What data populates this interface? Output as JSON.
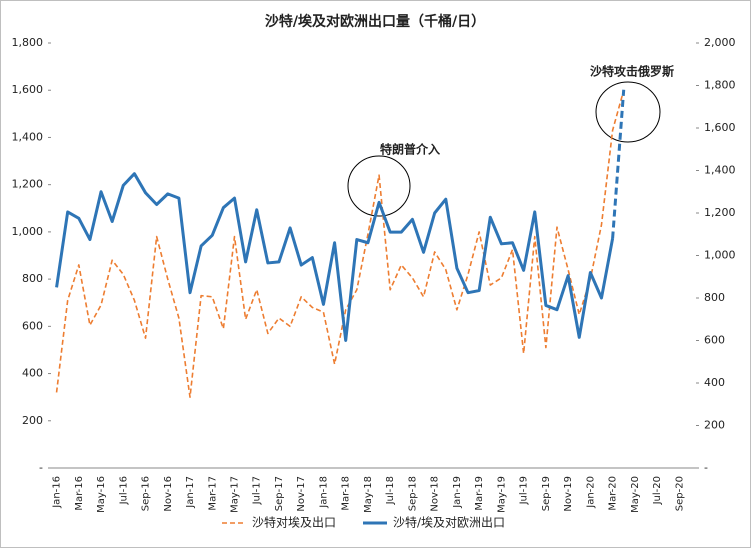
{
  "chart_data": {
    "type": "line",
    "title": "沙特/埃及对欧洲出口量（千桶/日）",
    "categories": [
      "Jan-16",
      null,
      "Mar-16",
      null,
      "May-16",
      null,
      "Jul-16",
      null,
      "Sep-16",
      null,
      "Nov-16",
      null,
      "Jan-17",
      null,
      "Mar-17",
      null,
      "May-17",
      null,
      "Jul-17",
      null,
      "Sep-17",
      null,
      "Nov-17",
      null,
      "Jan-18",
      null,
      "Mar-18",
      null,
      "May-18",
      null,
      "Jul-18",
      null,
      "Sep-18",
      null,
      "Nov-18",
      null,
      "Jan-19",
      null,
      "Mar-19",
      null,
      "May-19",
      null,
      "Jul-19",
      null,
      "Sep-19",
      null,
      "Nov-19",
      null,
      "Jan-20",
      null,
      "Mar-20",
      null,
      "May-20",
      null,
      "Jul-20",
      null,
      "Sep-20",
      null
    ],
    "series": [
      {
        "name": "沙特对埃及出口",
        "color": "#ed7d31",
        "axis": "y",
        "dashed": true,
        "values": [
          320,
          710,
          860,
          605,
          690,
          880,
          820,
          710,
          550,
          980,
          800,
          635,
          300,
          730,
          725,
          590,
          980,
          630,
          755,
          570,
          635,
          600,
          725,
          680,
          660,
          440,
          670,
          755,
          990,
          1240,
          755,
          860,
          805,
          725,
          915,
          840,
          670,
          820,
          1000,
          775,
          805,
          925,
          485,
          980,
          510,
          1020,
          840,
          650,
          800,
          1030,
          1430,
          1600,
          null,
          null,
          null,
          null,
          null,
          null
        ]
      },
      {
        "name": "沙特/埃及对欧洲出口",
        "color": "#2e75b6",
        "axis": "y2",
        "dashed_last_segment": true,
        "values": [
          850,
          1205,
          1175,
          1075,
          1300,
          1160,
          1330,
          1385,
          1295,
          1240,
          1290,
          1270,
          825,
          1045,
          1095,
          1225,
          1270,
          970,
          1215,
          965,
          970,
          1130,
          955,
          990,
          770,
          1060,
          600,
          1075,
          1060,
          1250,
          1110,
          1110,
          1170,
          1015,
          1200,
          1265,
          940,
          825,
          835,
          1180,
          1055,
          1060,
          930,
          1205,
          765,
          745,
          905,
          615,
          920,
          800,
          1080,
          1780,
          null,
          null,
          null,
          null,
          null,
          null
        ]
      }
    ],
    "ylim": [
      0,
      1800
    ],
    "yticks": [
      {
        "value": 0,
        "label": "-"
      },
      200,
      400,
      600,
      800,
      {
        "value": 1000,
        "label": "1,000"
      },
      {
        "value": 1200,
        "label": "1,200"
      },
      {
        "value": 1400,
        "label": "1,400"
      },
      {
        "value": 1600,
        "label": "1,600"
      },
      {
        "value": 1800,
        "label": "1,800"
      }
    ],
    "y2lim": [
      0,
      2000
    ],
    "y2ticks": [
      {
        "value": 0,
        "label": "-"
      },
      200,
      400,
      600,
      800,
      {
        "value": 1000,
        "label": "1,000"
      },
      {
        "value": 1200,
        "label": "1,200"
      },
      {
        "value": 1400,
        "label": "1,400"
      },
      {
        "value": 1600,
        "label": "1,600"
      },
      {
        "value": 1800,
        "label": "1,800"
      },
      {
        "value": 2000,
        "label": "2,000"
      }
    ],
    "annotations": [
      "特朗普介入",
      "沙特攻击俄罗斯"
    ]
  }
}
